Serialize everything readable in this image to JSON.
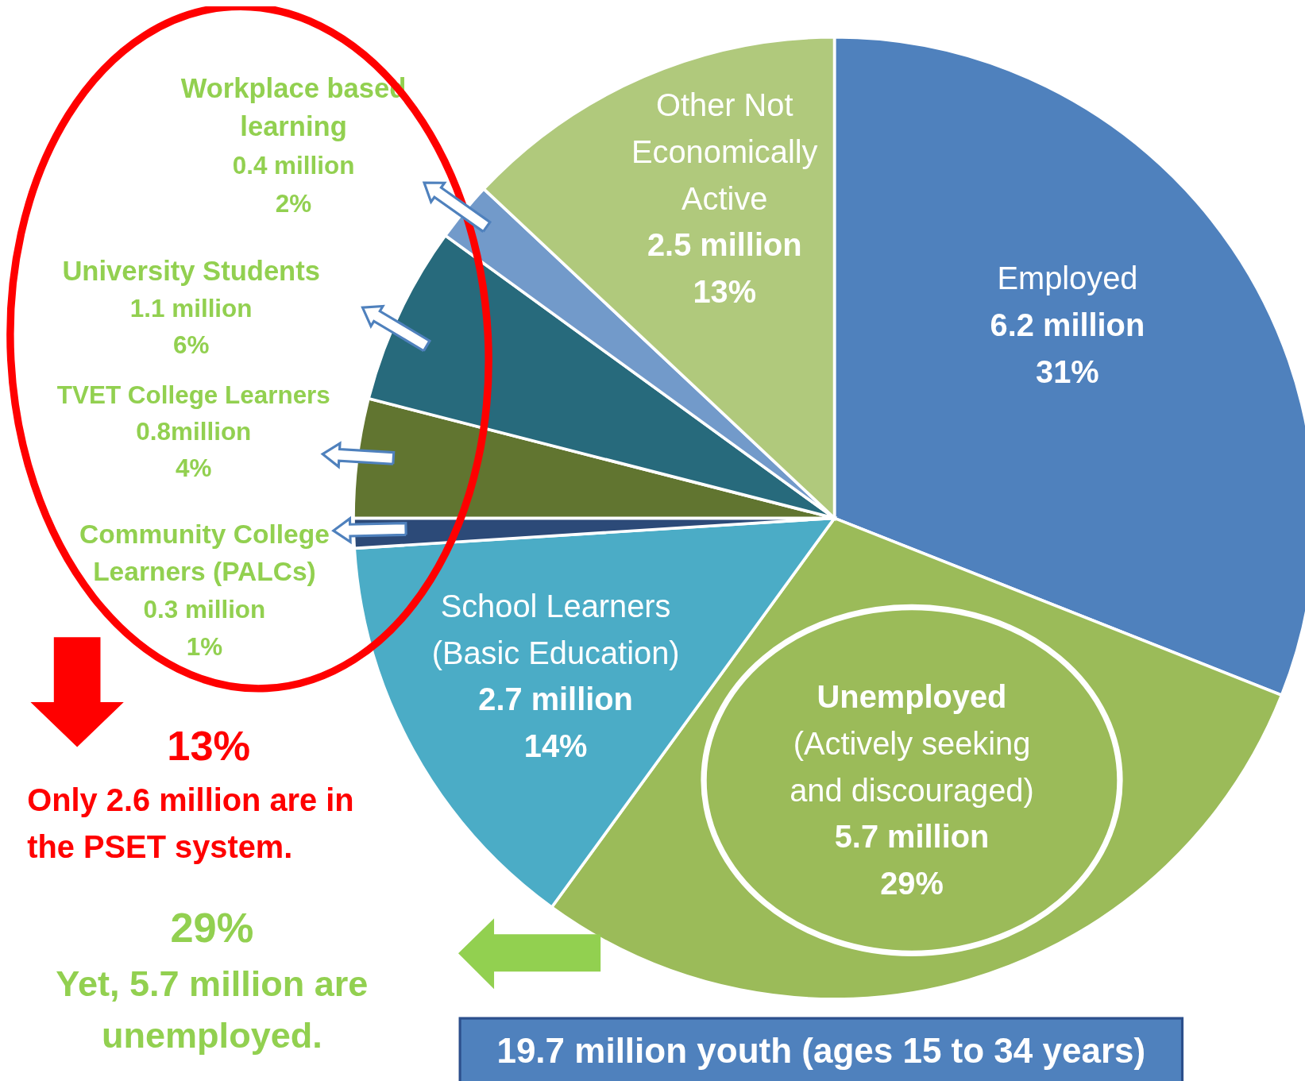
{
  "chart_data": {
    "type": "pie",
    "categories": [
      "Employed",
      "Unemployed\n(Actively seeking\nand discouraged)",
      "School Learners\n(Basic Education)",
      "Community College\nLearners  (PALCs)",
      "TVET College Learners",
      "University Students",
      "Workplace based\nlearning",
      "Other Not\nEconomically\nActive"
    ],
    "values": [
      31,
      29,
      14,
      1,
      4,
      6,
      2,
      13
    ],
    "value_labels": [
      "6.2 million\n31%",
      "5.7 million\n29%",
      "2.7 million\n14%",
      "0.3 million\n1%",
      "0.8million\n4%",
      "1.1 million\n6%",
      "0.4 million\n2%",
      "2.5 million\n13%"
    ],
    "colors": [
      "#4f81bd",
      "#9bbb59",
      "#4bacc6",
      "#2c4a78",
      "#617530",
      "#276a7c",
      "#729aca",
      "#b0c97c"
    ],
    "annotations": [
      "13%",
      "Only 2.6 million are in\nthe PSET system.",
      "29%",
      "Yet, 5.7 million are\nunemployed.",
      "19.7 million youth (ages 15 to 34 years)"
    ]
  }
}
